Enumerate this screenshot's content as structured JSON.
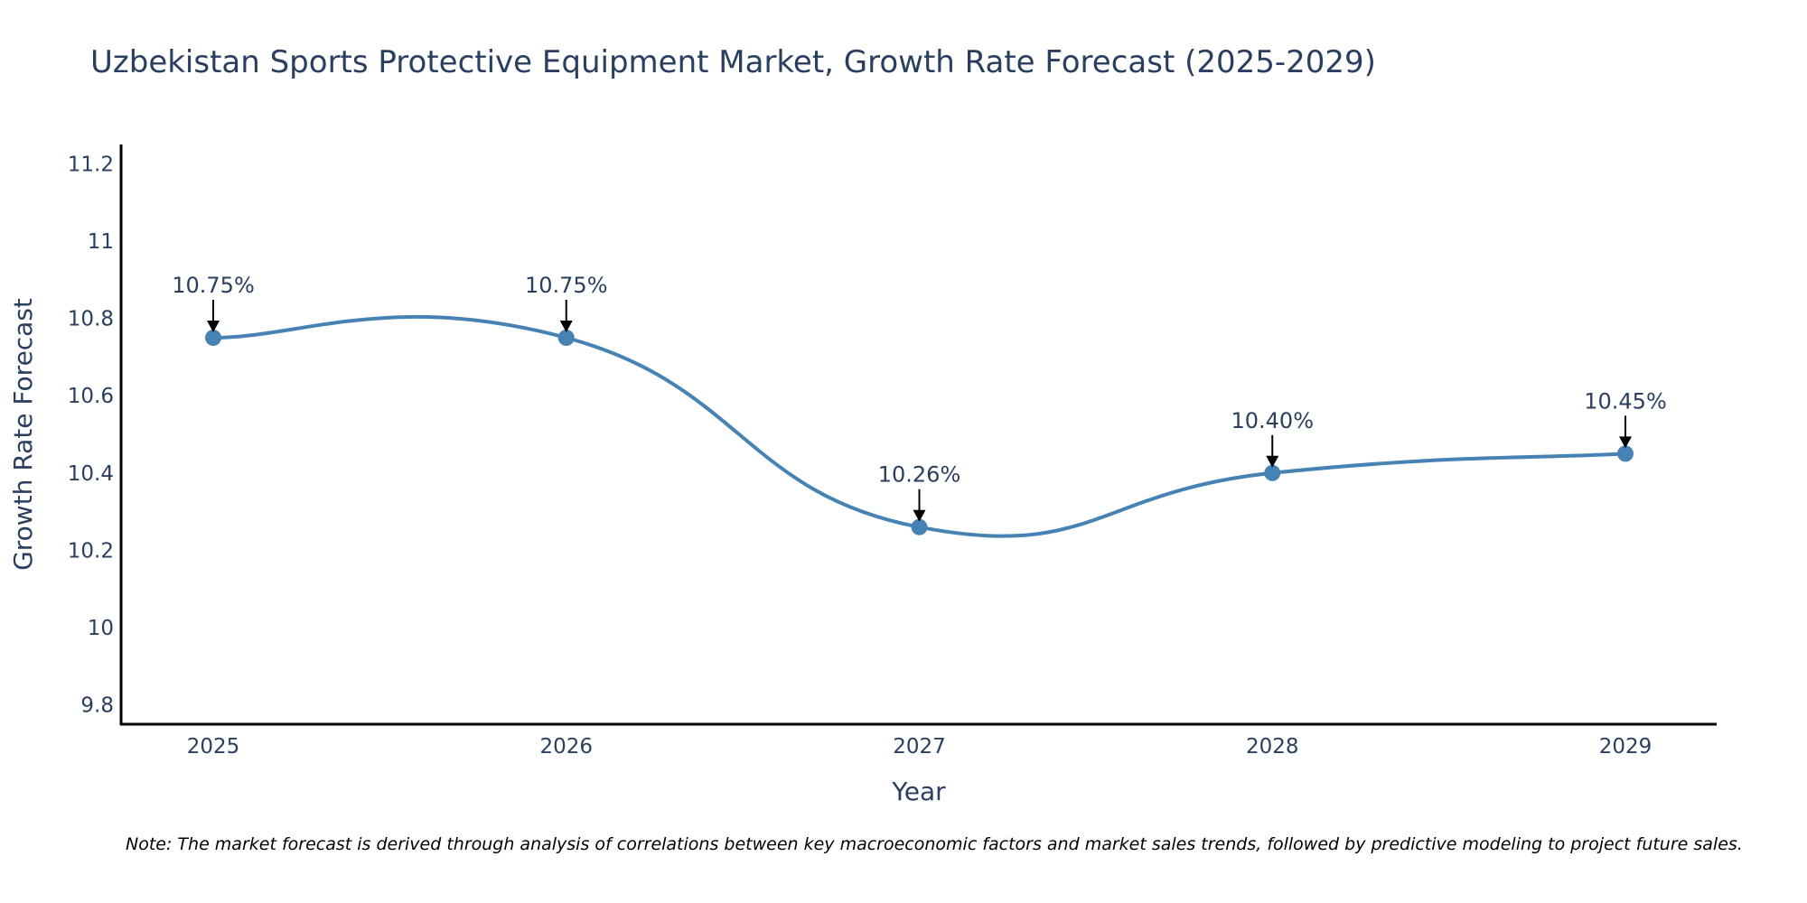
{
  "chart_data": {
    "type": "line",
    "title": "Uzbekistan Sports Protective Equipment Market, Growth Rate Forecast (2025-2029)",
    "xlabel": "Year",
    "ylabel": "Growth Rate Forecast",
    "categories": [
      "2025",
      "2026",
      "2027",
      "2028",
      "2029"
    ],
    "series": [
      {
        "name": "Growth Rate Forecast",
        "values": [
          10.75,
          10.75,
          10.26,
          10.4,
          10.45
        ],
        "labels": [
          "10.75%",
          "10.75%",
          "10.26%",
          "10.40%",
          "10.45%"
        ]
      }
    ],
    "yticks": [
      "9.8",
      "10",
      "10.2",
      "10.4",
      "10.6",
      "10.8",
      "11",
      "11.2"
    ],
    "ylim": [
      9.75,
      11.25
    ],
    "grid": false,
    "line_color": "#4682b4",
    "note": "Note: The market forecast is derived through analysis of correlations between key macroeconomic factors and market sales trends, followed by predictive modeling to project future sales."
  }
}
